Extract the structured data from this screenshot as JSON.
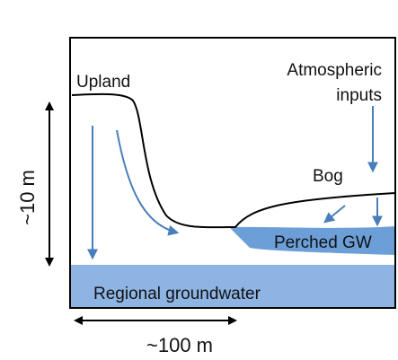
{
  "labels": {
    "upland": "Upland",
    "atmospheric_line1": "Atmospheric",
    "atmospheric_line2": "inputs",
    "bog": "Bog",
    "perched_gw": "Perched GW",
    "regional_groundwater": "Regional groundwater",
    "height_scale": "~10 m",
    "width_scale": "~100 m"
  }
}
